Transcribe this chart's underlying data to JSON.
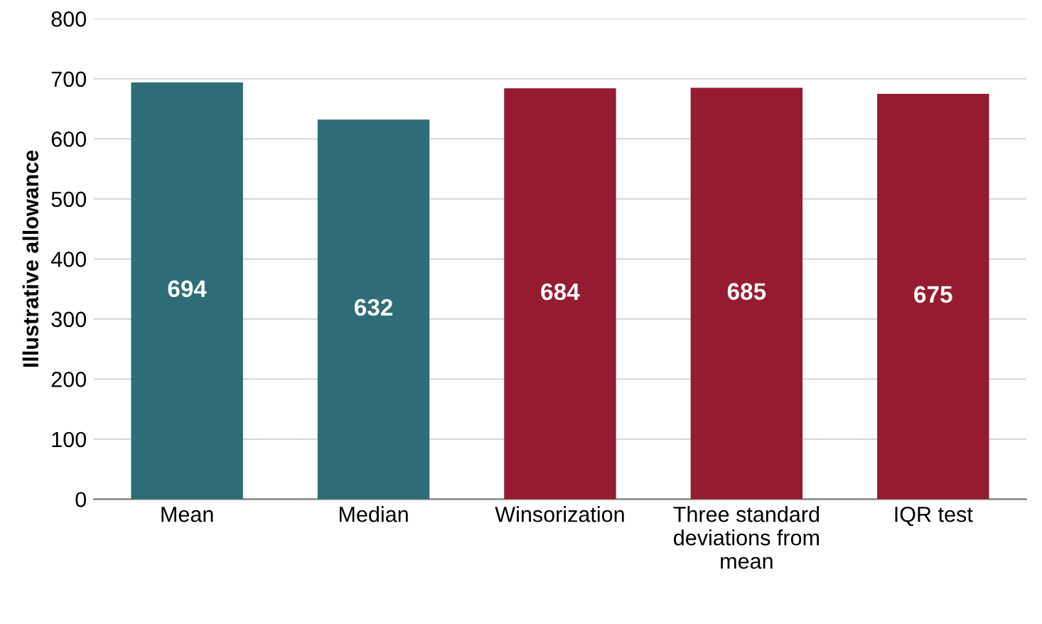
{
  "chart_data": {
    "type": "bar",
    "ylabel": "Illustrative allowance",
    "categories": [
      "Mean",
      "Median",
      "Winsorization",
      "Three standard\ndeviations from\nmean",
      "IQR test"
    ],
    "values": [
      694,
      632,
      684,
      685,
      675
    ],
    "colors": [
      "#2e6d78",
      "#2e6d78",
      "#951c30",
      "#951c30",
      "#951c30"
    ],
    "ylim": [
      0,
      800
    ],
    "yticks": [
      0,
      100,
      200,
      300,
      400,
      500,
      600,
      700,
      800
    ],
    "grid": "y",
    "data_labels": true
  }
}
